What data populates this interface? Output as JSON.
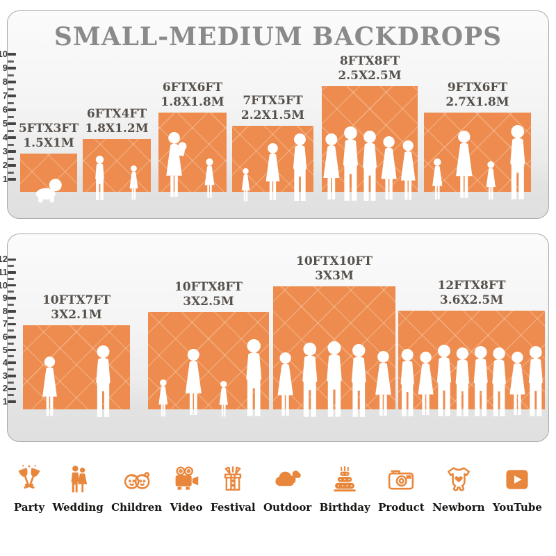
{
  "title": "SMALL-MEDIUM BACKDROPS",
  "colors": {
    "backdrop_orange": "#ED8C4E",
    "crosshatch_white": "rgba(255,255,255,0.25)",
    "silhouette_white": "#FFFFFF",
    "icon_orange": "#E8873C",
    "title_gray": "#8A8A8A",
    "label_dark": "#56504B"
  },
  "panels": [
    {
      "name": "small-medium backdrops upper row",
      "ruler_max_ft": 10,
      "backdrops": [
        {
          "size_ft": "5FTX3FT",
          "size_m": "1.5X1M",
          "figures": [
            "crawling baby"
          ]
        },
        {
          "size_ft": "6FTX4FT",
          "size_m": "1.8X1.2M",
          "figures": [
            "boy",
            "girl"
          ]
        },
        {
          "size_ft": "6FTX6FT",
          "size_m": "1.8X1.8M",
          "figures": [
            "woman carrying child",
            "girl"
          ]
        },
        {
          "size_ft": "7FTX5FT",
          "size_m": "2.2X1.5M",
          "figures": [
            "girl",
            "woman",
            "man"
          ]
        },
        {
          "size_ft": "8FTX8FT",
          "size_m": "2.5X2.5M",
          "figures": [
            "woman",
            "man",
            "man",
            "woman",
            "woman"
          ]
        },
        {
          "size_ft": "9FTX6FT",
          "size_m": "2.7X1.8M",
          "figures": [
            "girl",
            "woman",
            "girl",
            "man"
          ]
        }
      ]
    },
    {
      "name": "small-medium backdrops lower row",
      "ruler_max_ft": 12,
      "backdrops": [
        {
          "size_ft": "10FTX7FT",
          "size_m": "3X2.1M",
          "figures": [
            "woman",
            "man"
          ]
        },
        {
          "size_ft": "10FTX8FT",
          "size_m": "3X2.5M",
          "figures": [
            "girl",
            "woman",
            "girl",
            "man"
          ]
        },
        {
          "size_ft": "10FTX10FT",
          "size_m": "3X3M",
          "figures": [
            "woman",
            "man",
            "man",
            "man",
            "woman"
          ]
        },
        {
          "size_ft": "12FTX8FT",
          "size_m": "3.6X2.5M",
          "figures": [
            "man",
            "woman",
            "man",
            "man",
            "man",
            "man",
            "woman",
            "man"
          ]
        }
      ]
    }
  ],
  "categories": [
    {
      "label": "Party",
      "icon": "party-glasses-icon"
    },
    {
      "label": "Wedding",
      "icon": "wedding-couple-icon"
    },
    {
      "label": "Children",
      "icon": "children-faces-icon"
    },
    {
      "label": "Video",
      "icon": "video-camera-icon"
    },
    {
      "label": "Festival",
      "icon": "gift-box-icon"
    },
    {
      "label": "Outdoor",
      "icon": "cloud-icon"
    },
    {
      "label": "Birthday",
      "icon": "birthday-cake-icon"
    },
    {
      "label": "Product",
      "icon": "photo-camera-icon"
    },
    {
      "label": "Newborn",
      "icon": "baby-onesie-icon"
    },
    {
      "label": "YouTube",
      "icon": "youtube-play-icon"
    }
  ]
}
